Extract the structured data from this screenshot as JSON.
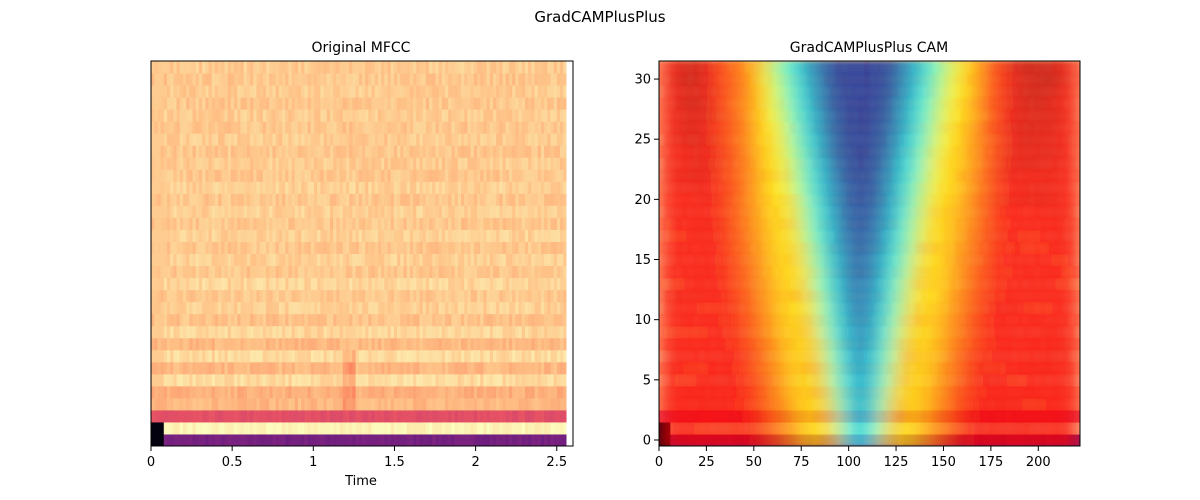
{
  "figure": {
    "suptitle": "GradCAMPlusPlus"
  },
  "chart_data": [
    {
      "type": "heatmap",
      "title": "Original MFCC",
      "xlabel": "Time",
      "ylabel": "",
      "xlim": [
        0,
        2.6
      ],
      "x_ticks": [
        0,
        0.5,
        1,
        1.5,
        2,
        2.5
      ],
      "x_tick_labels": [
        "0",
        "0.5",
        "1",
        "1.5",
        "2",
        "2.5"
      ],
      "y_ticks": [],
      "colormap": "magma",
      "n_coefficients": 32,
      "duration_s": 2.56,
      "row_levels": [
        0.35,
        0.98,
        0.62,
        0.86,
        0.84,
        0.93,
        0.86,
        0.93,
        0.86,
        0.92,
        0.88,
        0.91,
        0.89,
        0.92,
        0.89,
        0.91,
        0.89,
        0.91,
        0.89,
        0.91,
        0.89,
        0.91,
        0.89,
        0.9,
        0.89,
        0.9,
        0.89,
        0.9,
        0.89,
        0.9,
        0.89,
        0.9
      ]
    },
    {
      "type": "heatmap",
      "title": "GradCAMPlusPlus CAM",
      "xlabel": "",
      "ylabel": "",
      "xlim": [
        0,
        222
      ],
      "ylim": [
        -0.5,
        31.5
      ],
      "x_ticks": [
        0,
        25,
        50,
        75,
        100,
        125,
        150,
        175,
        200
      ],
      "x_tick_labels": [
        "0",
        "25",
        "50",
        "75",
        "100",
        "125",
        "150",
        "175",
        "200"
      ],
      "y_ticks": [
        0,
        5,
        10,
        15,
        20,
        25,
        30
      ],
      "y_tick_labels": [
        "0",
        "5",
        "10",
        "15",
        "20",
        "25",
        "30"
      ],
      "colormap": "jet (alpha overlay on MFCC)",
      "cam_profile": {
        "low_activation_center_x": 106,
        "halfwidth_top": 50,
        "halfwidth_bottom": 18
      }
    }
  ]
}
